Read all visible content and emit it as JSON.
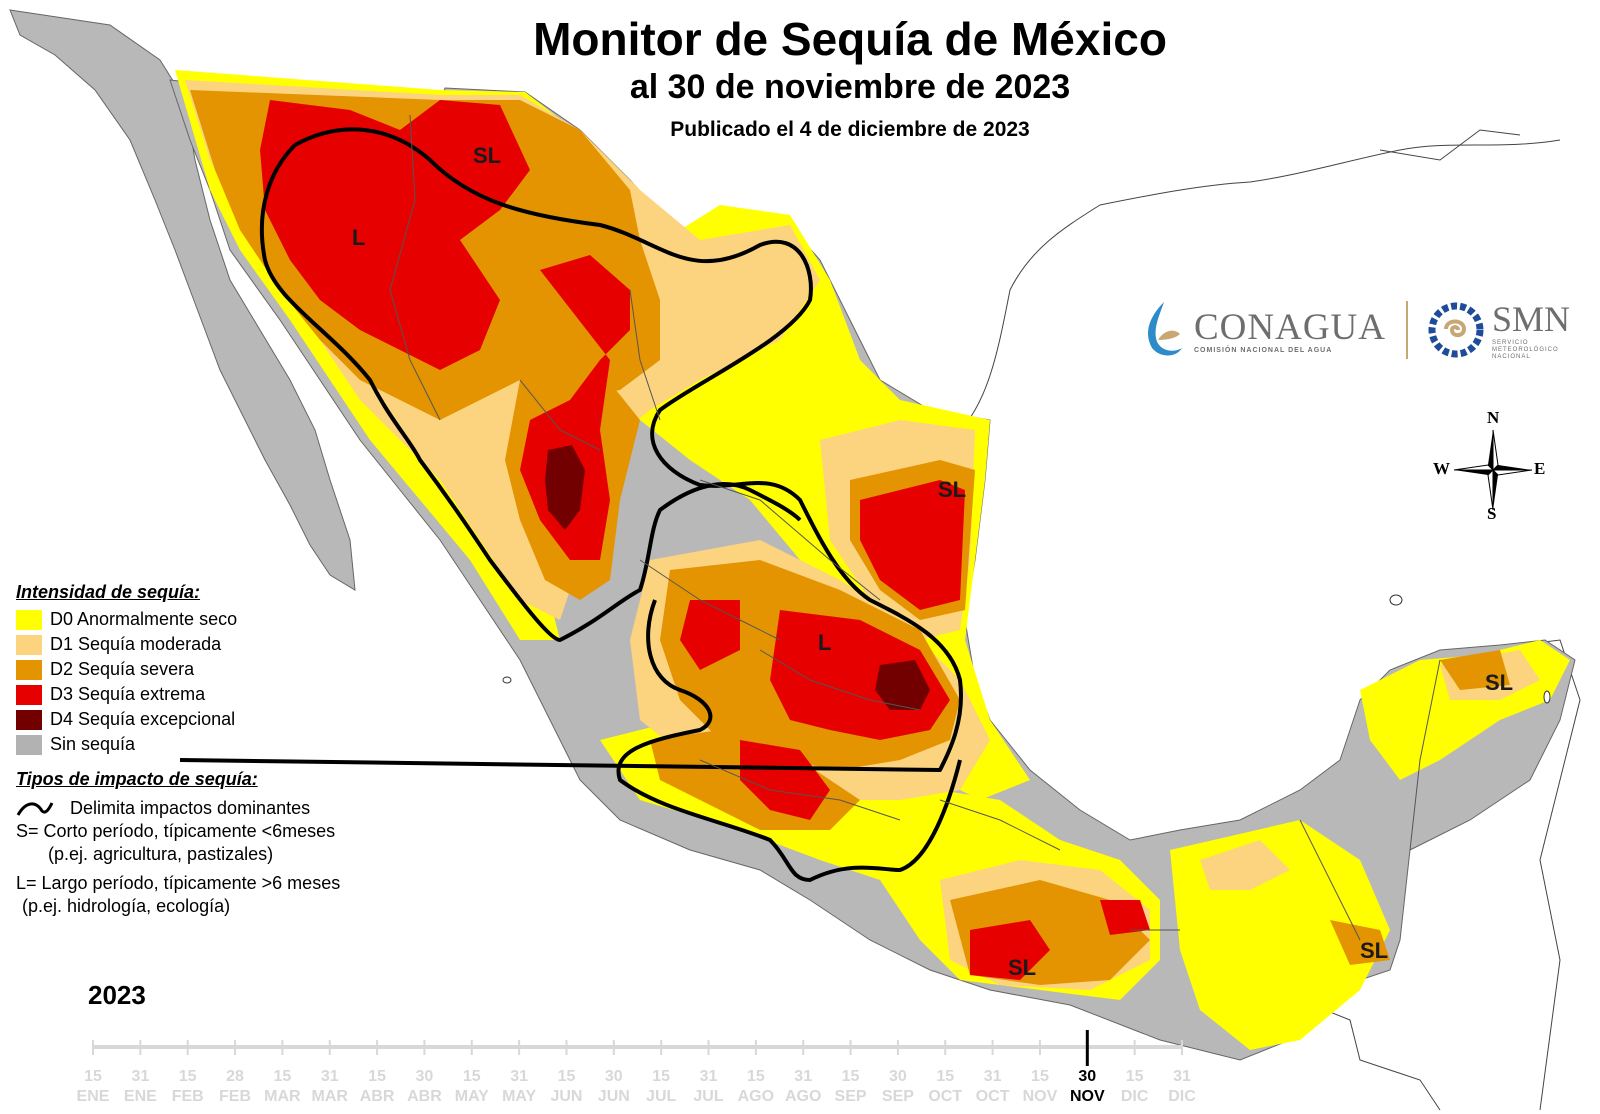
{
  "header": {
    "title": "Monitor de Sequía de México",
    "subtitle": "al 30 de noviembre de 2023",
    "published": "Publicado el 4 de diciembre de 2023"
  },
  "legend": {
    "title": "Intensidad de sequía:",
    "items": [
      {
        "label": "D0 Anormalmente seco",
        "color": "#ffff00"
      },
      {
        "label": "D1 Sequía moderada",
        "color": "#fcd37f"
      },
      {
        "label": "D2 Sequía severa",
        "color": "#ffaa00"
      },
      {
        "label": "D3 Sequía extrema",
        "color": "#e60000"
      },
      {
        "label": "D4 Sequía excepcional",
        "color": "#730000"
      },
      {
        "label": "Sin sequía",
        "color": "#b2b2b2"
      }
    ]
  },
  "impact": {
    "title": "Tipos de impacto de sequía:",
    "boundary": "Delimita impactos dominantes",
    "short_line1": "S= Corto período, típicamente <6meses",
    "short_line2": "(p.ej. agricultura, pastizales)",
    "long_line1": "L= Largo período, típicamente >6 meses",
    "long_line2": "(p.ej. hidrología, ecología)"
  },
  "map_labels": {
    "north_sl": "SL",
    "north_l": "L",
    "northeast_sl": "SL",
    "central_l": "L",
    "yucatan_sl": "SL",
    "chiapas_sl": "SL",
    "oaxaca_sl": "SL"
  },
  "logos": {
    "conagua": "CONAGUA",
    "conagua_sub": "COMISIÓN NACIONAL DEL AGUA",
    "smn": "SMN",
    "smn_sub1": "SERVICIO",
    "smn_sub2": "METEOROLÓGICO",
    "smn_sub3": "NACIONAL"
  },
  "compass": {
    "n": "N",
    "s": "S",
    "e": "E",
    "w": "W"
  },
  "timeline": {
    "year": "2023",
    "ticks": [
      {
        "day": "15",
        "month": "ENE"
      },
      {
        "day": "31",
        "month": "ENE"
      },
      {
        "day": "15",
        "month": "FEB"
      },
      {
        "day": "28",
        "month": "FEB"
      },
      {
        "day": "15",
        "month": "MAR"
      },
      {
        "day": "31",
        "month": "MAR"
      },
      {
        "day": "15",
        "month": "ABR"
      },
      {
        "day": "30",
        "month": "ABR"
      },
      {
        "day": "15",
        "month": "MAY"
      },
      {
        "day": "31",
        "month": "MAY"
      },
      {
        "day": "15",
        "month": "JUN"
      },
      {
        "day": "30",
        "month": "JUN"
      },
      {
        "day": "15",
        "month": "JUL"
      },
      {
        "day": "31",
        "month": "JUL"
      },
      {
        "day": "15",
        "month": "AGO"
      },
      {
        "day": "31",
        "month": "AGO"
      },
      {
        "day": "15",
        "month": "SEP"
      },
      {
        "day": "30",
        "month": "SEP"
      },
      {
        "day": "15",
        "month": "OCT"
      },
      {
        "day": "31",
        "month": "OCT"
      },
      {
        "day": "15",
        "month": "NOV"
      },
      {
        "day": "30",
        "month": "NOV"
      },
      {
        "day": "15",
        "month": "DIC"
      },
      {
        "day": "31",
        "month": "DIC"
      }
    ],
    "current_index": 21
  }
}
